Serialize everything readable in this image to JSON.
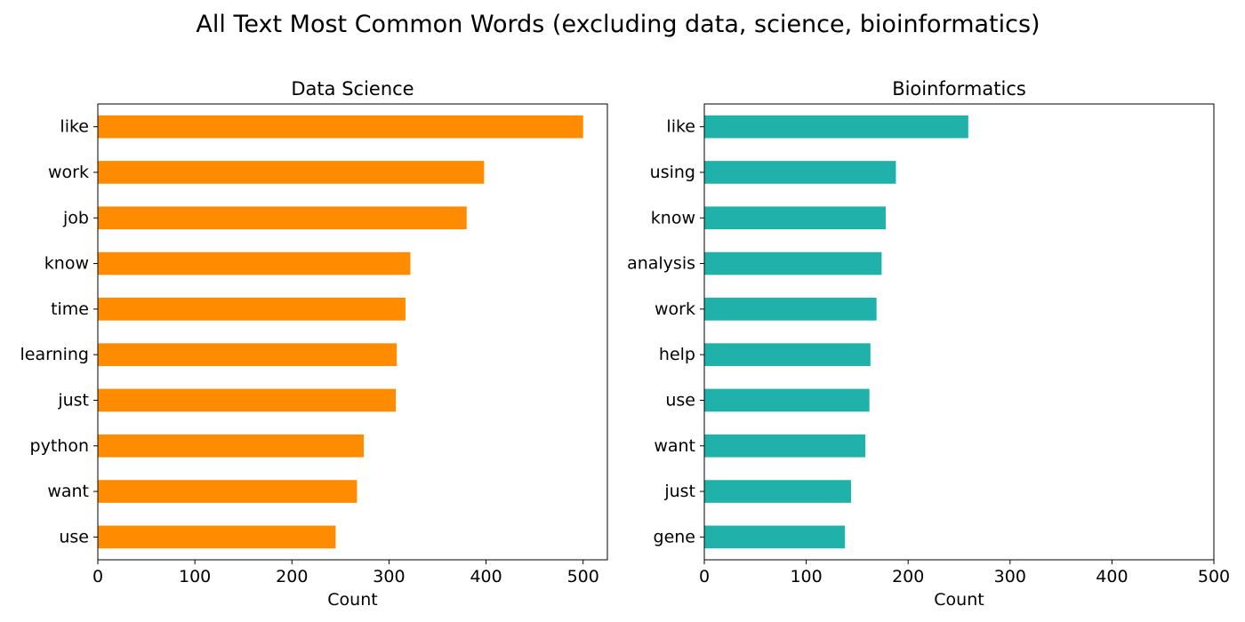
{
  "figure_title": "All Text Most Common Words (excluding data, science, bioinformatics)",
  "chart_data": [
    {
      "type": "bar",
      "orientation": "horizontal",
      "title": "Data Science",
      "xlabel": "Count",
      "ylabel": "",
      "xlim": [
        0,
        525
      ],
      "xticks": [
        0,
        100,
        200,
        300,
        400,
        500
      ],
      "color": "#ff8c00",
      "grid": false,
      "categories": [
        "like",
        "work",
        "job",
        "know",
        "time",
        "learning",
        "just",
        "python",
        "want",
        "use"
      ],
      "values": [
        500,
        398,
        380,
        322,
        317,
        308,
        307,
        274,
        267,
        245
      ]
    },
    {
      "type": "bar",
      "orientation": "horizontal",
      "title": "Bioinformatics",
      "xlabel": "Count",
      "ylabel": "",
      "xlim": [
        0,
        500
      ],
      "xticks": [
        0,
        100,
        200,
        300,
        400,
        500
      ],
      "color": "#20b2aa",
      "grid": false,
      "categories": [
        "like",
        "using",
        "know",
        "analysis",
        "work",
        "help",
        "use",
        "want",
        "just",
        "gene"
      ],
      "values": [
        259,
        188,
        178,
        174,
        169,
        163,
        162,
        158,
        144,
        138
      ]
    }
  ]
}
